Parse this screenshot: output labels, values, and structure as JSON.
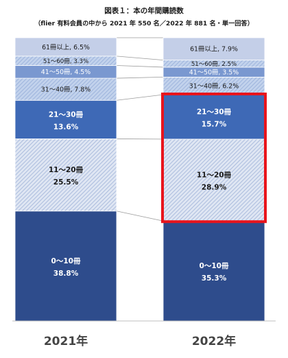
{
  "chart_data": {
    "type": "bar",
    "stacked": true,
    "normalized": true,
    "title": "図表１：本の年間購読数",
    "subtitle": "（flier 有料会員の中から 2021 年 550 名／2022 年 881 名・単一回答）",
    "categories": [
      "2021年",
      "2022年"
    ],
    "ylim": [
      0,
      100
    ],
    "series": [
      {
        "name": "0～10冊",
        "values": [
          38.8,
          35.3
        ],
        "labels": [
          "38.8%",
          "35.3%"
        ],
        "color": "#2e4c8c",
        "pattern": "solid",
        "text_color": "#ffffff"
      },
      {
        "name": "11～20冊",
        "values": [
          25.5,
          28.9
        ],
        "labels": [
          "25.5%",
          "28.9%"
        ],
        "color": "#dbe3f2",
        "pattern": "hatch",
        "text_color": "#1a1a1a"
      },
      {
        "name": "21～30冊",
        "values": [
          13.6,
          15.7
        ],
        "labels": [
          "13.6%",
          "15.7%"
        ],
        "color": "#3e69b6",
        "pattern": "solid",
        "text_color": "#ffffff"
      },
      {
        "name": "31～40冊",
        "values": [
          7.8,
          6.2
        ],
        "labels": [
          "7.8%",
          "6.2%"
        ],
        "color": "#b3c6e6",
        "pattern": "hatch",
        "text_color": "#1a1a1a"
      },
      {
        "name": "41～50冊",
        "values": [
          4.5,
          3.5
        ],
        "labels": [
          "4.5%",
          "3.5%"
        ],
        "color": "#7a98d0",
        "pattern": "solid",
        "text_color": "#ffffff"
      },
      {
        "name": "51～60冊",
        "values": [
          3.3,
          2.5
        ],
        "labels": [
          "3.3%",
          "2.5%"
        ],
        "color": "#c9d7ee",
        "pattern": "hatch",
        "text_color": "#1a1a1a"
      },
      {
        "name": "61冊以上",
        "values": [
          6.5,
          7.9
        ],
        "labels": [
          "6.5%",
          "7.9%"
        ],
        "color": "#c4cfe8",
        "pattern": "solid",
        "text_color": "#1a1a1a"
      }
    ],
    "highlight": {
      "category": "2022年",
      "series": [
        "11～20冊",
        "21～30冊"
      ],
      "color": "#e8141c"
    },
    "legend": "none",
    "grid": false
  }
}
